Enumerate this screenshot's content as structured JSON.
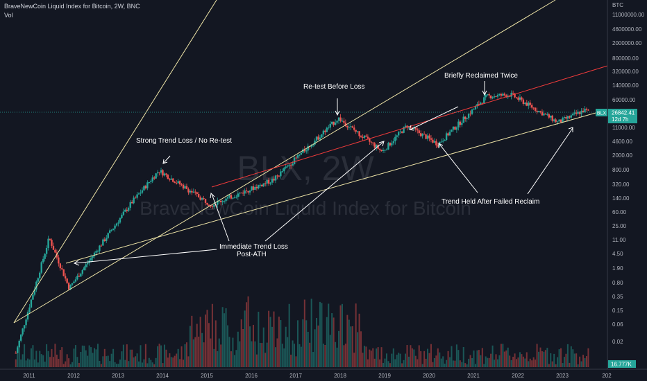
{
  "header": {
    "symbol_line": "BraveNewCoin Liquid Index for Bitcoin, 2W, BNC",
    "volume_label": "Vol"
  },
  "watermark": {
    "ticker": "BLX, 2W",
    "name": "BraveNewCoin Liquid Index for Bitcoin"
  },
  "price_axis": {
    "currency": "BTC",
    "ticks": [
      "11000000.00",
      "4600000.00",
      "2000000.00",
      "800000.00",
      "320000.00",
      "140000.00",
      "60000.00",
      "26842.41",
      "12d 7h",
      "11000.00",
      "4600.00",
      "2000.00",
      "800.00",
      "320.00",
      "140.00",
      "60.00",
      "25.00",
      "11.00",
      "4.50",
      "1.90",
      "0.80",
      "0.35",
      "0.15",
      "0.06",
      "0.02"
    ],
    "last_symbol": "BLX",
    "last_price": "26842.41",
    "countdown": "12d 7h",
    "volume_value": "16.777K"
  },
  "time_axis": {
    "ticks": [
      "2011",
      "2012",
      "2013",
      "2014",
      "2015",
      "2016",
      "2017",
      "2018",
      "2019",
      "2020",
      "2021",
      "2022",
      "2023",
      "202"
    ]
  },
  "annotations": [
    {
      "id": "strong-trend-loss",
      "text": "Strong Trend Loss / No Re-test"
    },
    {
      "id": "re-test-before-loss",
      "text": "Re-test Before Loss"
    },
    {
      "id": "briefly-reclaimed-twice",
      "text": "Briefly Reclaimed Twice"
    },
    {
      "id": "trend-held",
      "text": "Trend Held After Failed Reclaim"
    },
    {
      "id": "immediate-trend-loss",
      "text": "Immediate Trend Loss",
      "text2": "Post-ATH"
    }
  ],
  "colors": {
    "background": "#131722",
    "up": "#26a69a",
    "down": "#ef5350",
    "trendline": "#f0e6a8",
    "red_trendline": "#ef3b3b",
    "last_price": "#26a69a"
  },
  "chart_data": {
    "type": "candlestick",
    "title": "BraveNewCoin Liquid Index for Bitcoin, 2W, BNC",
    "y_scale": "log",
    "ylim": [
      0.01,
      20000000
    ],
    "xlim": [
      2010.5,
      2024.0
    ],
    "last_price": 26842.41,
    "key_points": [
      {
        "date": "2010.7",
        "price": 0.06
      },
      {
        "date": "2011.45",
        "price": 30
      },
      {
        "date": "2011.9",
        "price": 2.0
      },
      {
        "date": "2013.3",
        "price": 200
      },
      {
        "date": "2013.92",
        "price": 1150
      },
      {
        "date": "2015.1",
        "price": 180
      },
      {
        "date": "2016.5",
        "price": 700
      },
      {
        "date": "2017.96",
        "price": 19500
      },
      {
        "date": "2018.95",
        "price": 3200
      },
      {
        "date": "2019.5",
        "price": 13000
      },
      {
        "date": "2020.2",
        "price": 4800
      },
      {
        "date": "2021.3",
        "price": 63000
      },
      {
        "date": "2021.85",
        "price": 69000
      },
      {
        "date": "2022.9",
        "price": 15500
      },
      {
        "date": "2023.5",
        "price": 30000
      },
      {
        "date": "2023.6",
        "price": 26842
      }
    ]
  }
}
